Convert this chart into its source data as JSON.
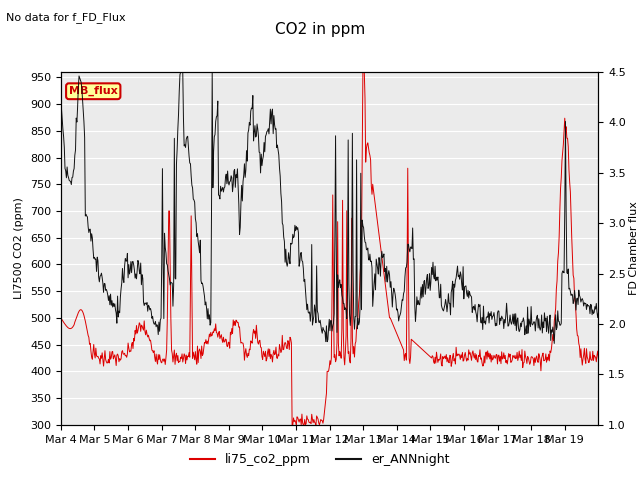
{
  "title": "CO2 in ppm",
  "top_left_text": "No data for f_FD_Flux",
  "ylabel_left": "LI7500 CO2 (ppm)",
  "ylabel_right": "FD Chamber flux",
  "ylim_left": [
    300,
    960
  ],
  "ylim_right": [
    1.0,
    4.5
  ],
  "yticks_left": [
    300,
    350,
    400,
    450,
    500,
    550,
    600,
    650,
    700,
    750,
    800,
    850,
    900,
    950
  ],
  "yticks_right": [
    1.0,
    1.5,
    2.0,
    2.5,
    3.0,
    3.5,
    4.0,
    4.5
  ],
  "xtick_labels": [
    "Mar 4",
    "Mar 5",
    "Mar 6",
    "Mar 7",
    "Mar 8",
    "Mar 9",
    "Mar 10",
    "Mar 11",
    "Mar 12",
    "Mar 13",
    "Mar 14",
    "Mar 15",
    "Mar 16",
    "Mar 17",
    "Mar 18",
    "Mar 19"
  ],
  "legend_label_red": "li75_co2_ppm",
  "legend_label_black": "er_ANNnight",
  "mb_flux_box_color": "#ffff99",
  "mb_flux_text_color": "#cc0000",
  "mb_flux_border_color": "#cc0000",
  "line_color_red": "#dd0000",
  "line_color_black": "#111111",
  "background_color": "#ebebeb",
  "grid_color": "#ffffff"
}
